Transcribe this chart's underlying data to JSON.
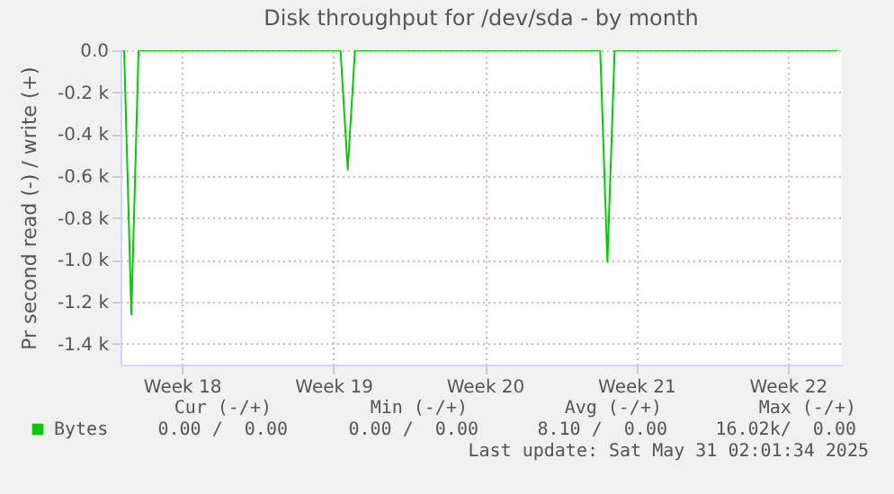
{
  "chart_data": {
    "type": "line",
    "title": "Disk throughput for /dev/sda - by month",
    "ylabel": "Pr second read (-) / write (+)",
    "categories": [
      null,
      null,
      null,
      null,
      null,
      null,
      null,
      null,
      "Week 18",
      null,
      null,
      null,
      null,
      null,
      null,
      null,
      null,
      null,
      null,
      null,
      null,
      null,
      null,
      null,
      null,
      null,
      null,
      null,
      null,
      "Week 19",
      null,
      null,
      null,
      null,
      null,
      null,
      null,
      null,
      null,
      null,
      null,
      null,
      null,
      null,
      null,
      null,
      null,
      null,
      null,
      null,
      "Week 20",
      null,
      null,
      null,
      null,
      null,
      null,
      null,
      null,
      null,
      null,
      null,
      null,
      null,
      null,
      null,
      null,
      null,
      null,
      null,
      null,
      "Week 21",
      null,
      null,
      null,
      null,
      null,
      null,
      null,
      null,
      null,
      null,
      null,
      null,
      null,
      null,
      null,
      null,
      null,
      null,
      null,
      null,
      "Week 22",
      null,
      null,
      null,
      null,
      null,
      null,
      null
    ],
    "series": [
      {
        "name": "Bytes",
        "color": "#00cc00",
        "values": [
          0,
          -1260,
          0,
          0,
          0,
          0,
          0,
          0,
          0,
          0,
          0,
          0,
          0,
          0,
          0,
          0,
          0,
          0,
          0,
          0,
          0,
          0,
          0,
          0,
          0,
          0,
          0,
          0,
          0,
          0,
          0,
          -570,
          0,
          0,
          0,
          0,
          0,
          0,
          0,
          0,
          0,
          0,
          0,
          0,
          0,
          0,
          0,
          0,
          0,
          0,
          0,
          0,
          0,
          0,
          0,
          0,
          0,
          0,
          0,
          0,
          0,
          0,
          0,
          0,
          0,
          0,
          0,
          -1010,
          0,
          0,
          0,
          0,
          0,
          0,
          0,
          0,
          0,
          0,
          0,
          0,
          0,
          0,
          0,
          0,
          0,
          0,
          0,
          0,
          0,
          0,
          0,
          0,
          0,
          0,
          0,
          0,
          0,
          0,
          0,
          0
        ]
      }
    ],
    "ylim": [
      -1500,
      0
    ],
    "yticks": [
      {
        "value": -1400,
        "label": "-1.4 k"
      },
      {
        "value": -1200,
        "label": "-1.2 k"
      },
      {
        "value": -1000,
        "label": "-1.0 k"
      },
      {
        "value": -800,
        "label": "-0.8 k"
      },
      {
        "value": -600,
        "label": "-0.6 k"
      },
      {
        "value": -400,
        "label": "-0.4 k"
      },
      {
        "value": -200,
        "label": "-0.2 k"
      },
      {
        "value": 0,
        "label": "0.0"
      }
    ],
    "grid": true,
    "legend": "bottom left",
    "marker": "none",
    "line_style": "solid",
    "annotations": [
      "Cur (-/+)",
      "Min (-/+)",
      "Avg (-/+)",
      "Max (-/+)",
      "0.00 /  0.00",
      "0.00 /  0.00",
      "8.10 /  0.00",
      "16.02k/  0.00",
      "Last update: Sat May 31 02:01:34 2025"
    ]
  }
}
